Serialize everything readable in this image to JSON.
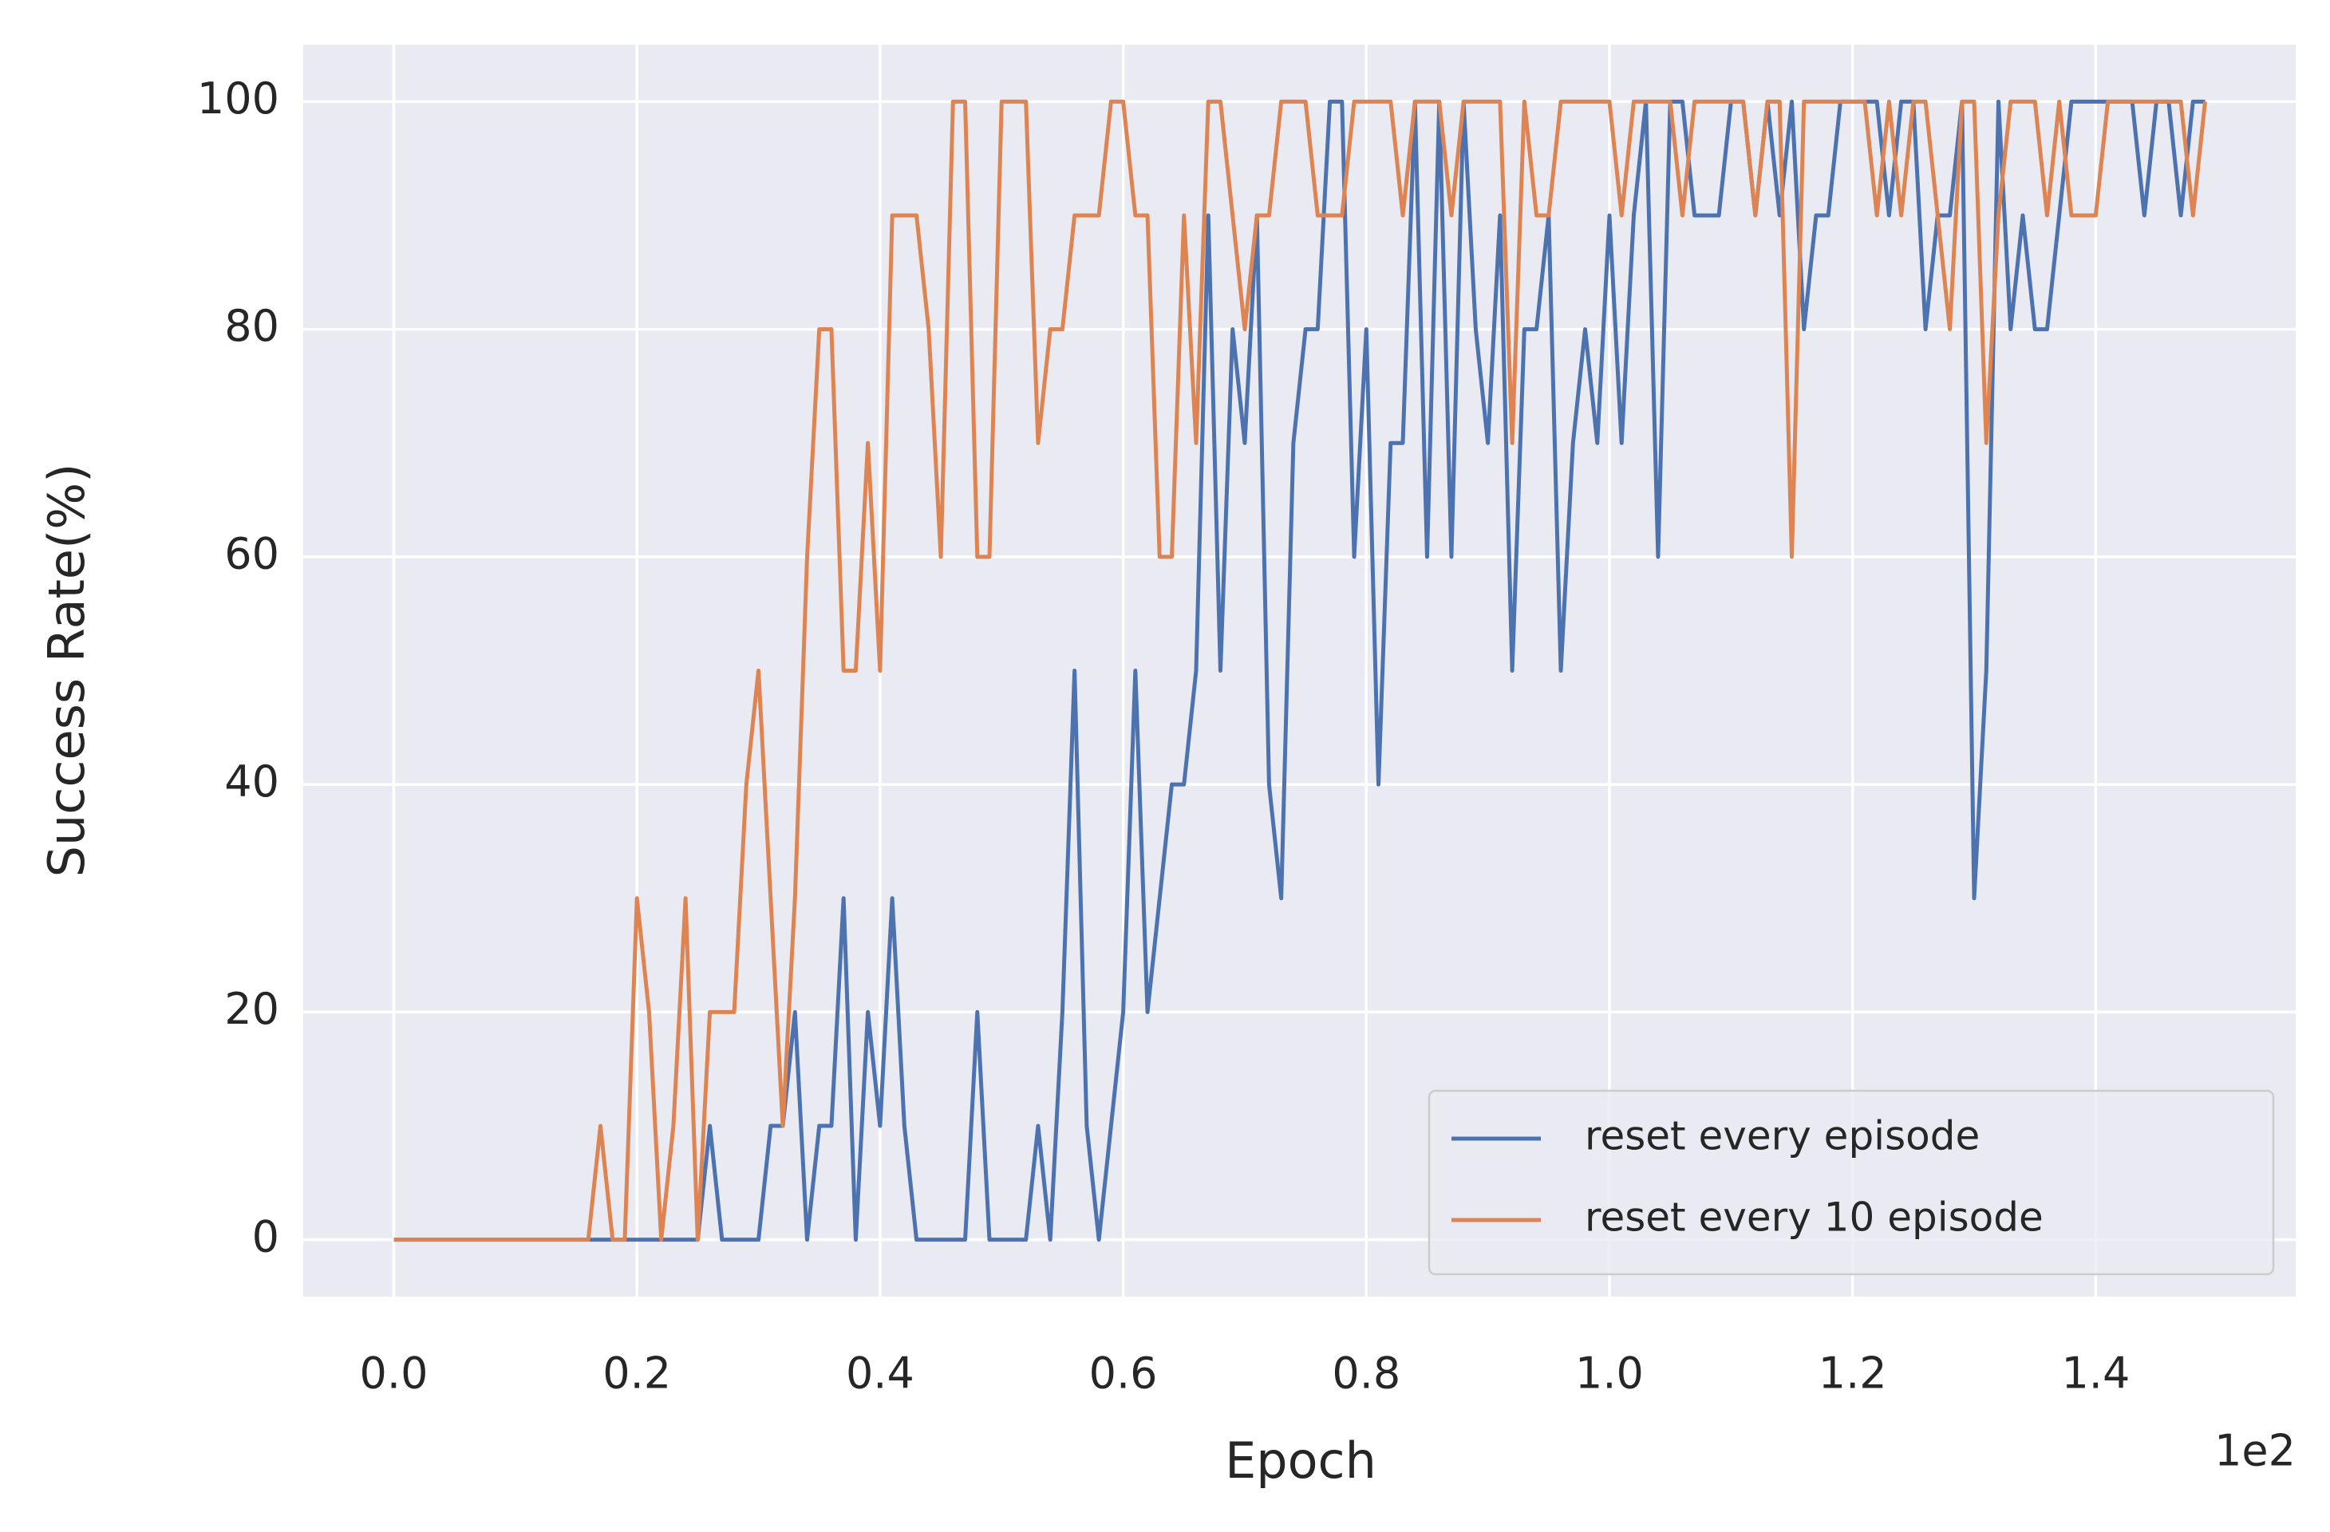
{
  "chart_data": {
    "type": "line",
    "xlabel": "Epoch",
    "ylabel": "Success Rate(%)",
    "x_offset_label": "1e2",
    "x": [
      0,
      1,
      2,
      3,
      4,
      5,
      6,
      7,
      8,
      9,
      10,
      11,
      12,
      13,
      14,
      15,
      16,
      17,
      18,
      19,
      20,
      21,
      22,
      23,
      24,
      25,
      26,
      27,
      28,
      29,
      30,
      31,
      32,
      33,
      34,
      35,
      36,
      37,
      38,
      39,
      40,
      41,
      42,
      43,
      44,
      45,
      46,
      47,
      48,
      49,
      50,
      51,
      52,
      53,
      54,
      55,
      56,
      57,
      58,
      59,
      60,
      61,
      62,
      63,
      64,
      65,
      66,
      67,
      68,
      69,
      70,
      71,
      72,
      73,
      74,
      75,
      76,
      77,
      78,
      79,
      80,
      81,
      82,
      83,
      84,
      85,
      86,
      87,
      88,
      89,
      90,
      91,
      92,
      93,
      94,
      95,
      96,
      97,
      98,
      99,
      100,
      101,
      102,
      103,
      104,
      105,
      106,
      107,
      108,
      109,
      110,
      111,
      112,
      113,
      114,
      115,
      116,
      117,
      118,
      119,
      120,
      121,
      122,
      123,
      124,
      125,
      126,
      127,
      128,
      129,
      130,
      131,
      132,
      133,
      134,
      135,
      136,
      137,
      138,
      139,
      140,
      141,
      142,
      143,
      144,
      145,
      146,
      147,
      148,
      149
    ],
    "series": [
      {
        "name": "reset every episode",
        "color": "#4c72b0",
        "values": [
          0,
          0,
          0,
          0,
          0,
          0,
          0,
          0,
          0,
          0,
          0,
          0,
          0,
          0,
          0,
          0,
          0,
          0,
          0,
          0,
          0,
          0,
          0,
          0,
          0,
          0,
          10,
          0,
          0,
          0,
          0,
          10,
          10,
          20,
          0,
          10,
          10,
          30,
          0,
          20,
          10,
          30,
          10,
          0,
          0,
          0,
          0,
          0,
          20,
          0,
          0,
          0,
          0,
          10,
          0,
          20,
          50,
          10,
          0,
          10,
          20,
          50,
          20,
          30,
          40,
          40,
          50,
          90,
          50,
          80,
          70,
          90,
          40,
          30,
          70,
          80,
          80,
          100,
          100,
          60,
          80,
          40,
          70,
          70,
          100,
          60,
          100,
          60,
          100,
          80,
          70,
          90,
          50,
          80,
          80,
          90,
          50,
          70,
          80,
          70,
          90,
          70,
          90,
          100,
          60,
          100,
          100,
          90,
          90,
          90,
          100,
          100,
          90,
          100,
          90,
          100,
          80,
          90,
          90,
          100,
          100,
          100,
          100,
          90,
          100,
          100,
          80,
          90,
          90,
          100,
          30,
          50,
          100,
          80,
          90,
          80,
          80,
          90,
          100,
          100,
          100,
          100,
          100,
          100,
          90,
          100,
          100,
          90,
          100,
          100
        ]
      },
      {
        "name": "reset every 10 episode",
        "color": "#dd8452",
        "values": [
          0,
          0,
          0,
          0,
          0,
          0,
          0,
          0,
          0,
          0,
          0,
          0,
          0,
          0,
          0,
          0,
          0,
          10,
          0,
          0,
          30,
          20,
          0,
          10,
          30,
          0,
          20,
          20,
          20,
          40,
          50,
          30,
          10,
          30,
          60,
          80,
          80,
          50,
          50,
          70,
          50,
          90,
          90,
          90,
          80,
          60,
          100,
          100,
          60,
          60,
          100,
          100,
          100,
          70,
          80,
          80,
          90,
          90,
          90,
          100,
          100,
          90,
          90,
          60,
          60,
          90,
          70,
          100,
          100,
          90,
          80,
          90,
          90,
          100,
          100,
          100,
          90,
          90,
          90,
          100,
          100,
          100,
          100,
          90,
          100,
          100,
          100,
          90,
          100,
          100,
          100,
          100,
          70,
          100,
          90,
          90,
          100,
          100,
          100,
          100,
          100,
          90,
          100,
          100,
          100,
          100,
          90,
          100,
          100,
          100,
          100,
          100,
          90,
          100,
          100,
          60,
          100,
          100,
          100,
          100,
          100,
          100,
          90,
          100,
          90,
          100,
          100,
          90,
          80,
          100,
          100,
          70,
          90,
          100,
          100,
          100,
          90,
          100,
          90,
          90,
          90,
          100,
          100,
          100,
          100,
          100,
          100,
          100,
          90,
          100
        ]
      }
    ],
    "xlim": [
      -7.45,
      156.45
    ],
    "ylim": [
      -5,
      105
    ],
    "xticks": [
      {
        "value": 0,
        "label": "0.0"
      },
      {
        "value": 20,
        "label": "0.2"
      },
      {
        "value": 40,
        "label": "0.4"
      },
      {
        "value": 60,
        "label": "0.6"
      },
      {
        "value": 80,
        "label": "0.8"
      },
      {
        "value": 100,
        "label": "1.0"
      },
      {
        "value": 120,
        "label": "1.2"
      },
      {
        "value": 140,
        "label": "1.4"
      }
    ],
    "yticks": [
      0,
      20,
      40,
      60,
      80,
      100
    ],
    "grid": true,
    "legend": "lower right",
    "background": "#eaeaf2"
  }
}
